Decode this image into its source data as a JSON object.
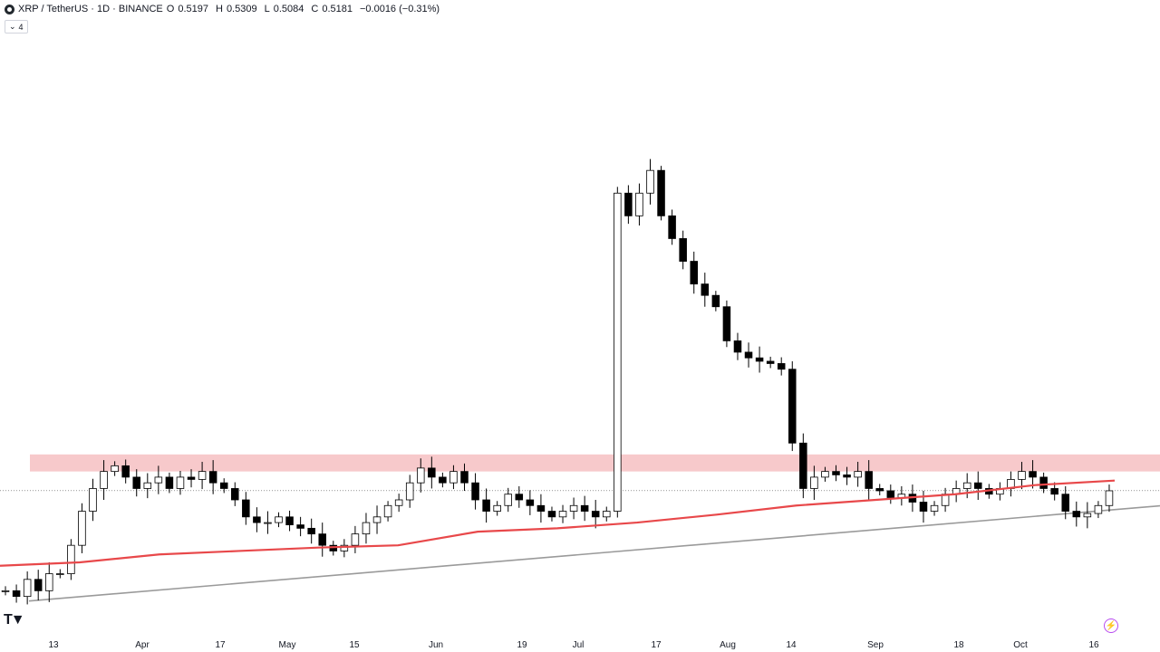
{
  "header": {
    "symbol": "XRP / TetherUS · 1D · BINANCE",
    "o_label": "O",
    "o_value": "0.5197",
    "h_label": "H",
    "h_value": "0.5309",
    "l_label": "L",
    "l_value": "0.5084",
    "c_label": "C",
    "c_value": "0.5181",
    "change": "−0.0016 (−0.31%)"
  },
  "indicator_toggle": {
    "icon": "chevron-down-icon",
    "count": "4"
  },
  "colors": {
    "ma": "#e8484a",
    "zone": "#f7c9cb",
    "trendline": "#9a9a9a",
    "candle_up": "#ffffff",
    "candle_down": "#000000",
    "wick": "#000000",
    "last_price_line": "#555555"
  },
  "chart_data": {
    "type": "candlestick",
    "symbol": "XRP / TetherUS",
    "interval": "1D",
    "exchange": "BINANCE",
    "x_ticks": [
      "13",
      "Apr",
      "17",
      "May",
      "15",
      "Jun",
      "19",
      "Jul",
      "17",
      "Aug",
      "14",
      "Sep",
      "18",
      "Oct",
      "16"
    ],
    "ylim": [
      0.4,
      0.95
    ],
    "last_close": 0.5181,
    "resistance_zone": [
      0.535,
      0.55
    ],
    "trendline": {
      "start": [
        "13",
        0.421
      ],
      "end": [
        "16",
        0.5
      ]
    },
    "moving_average": [
      0.452,
      0.455,
      0.462,
      0.465,
      0.468,
      0.47,
      0.482,
      0.485,
      0.49,
      0.497,
      0.505,
      0.51,
      0.515,
      0.523,
      0.527
    ],
    "price_path": [
      [
        0.43,
        0.425,
        0.44,
        0.43,
        0.445,
        0.445,
        0.47,
        0.5,
        0.52,
        0.535,
        0.54,
        0.53
      ],
      [
        0.52,
        0.525,
        0.53,
        0.52,
        0.53,
        0.528,
        0.535,
        0.525,
        0.52,
        0.51,
        0.495,
        0.49
      ],
      [
        0.49,
        0.495,
        0.488,
        0.485,
        0.48,
        0.47,
        0.465,
        0.47,
        0.48,
        0.49,
        0.495,
        0.505
      ],
      [
        0.51,
        0.525,
        0.538,
        0.53,
        0.525,
        0.535,
        0.525,
        0.51,
        0.5,
        0.505,
        0.515,
        0.51
      ],
      [
        0.505,
        0.5,
        0.495,
        0.5,
        0.505,
        0.5,
        0.495,
        0.5,
        0.78,
        0.76,
        0.78,
        0.8
      ],
      [
        0.76,
        0.74,
        0.72,
        0.7,
        0.69,
        0.68,
        0.65,
        0.64,
        0.635,
        0.632,
        0.63,
        0.625
      ],
      [
        0.56,
        0.52,
        0.53,
        0.535,
        0.532,
        0.53,
        0.535,
        0.52,
        0.518,
        0.512,
        0.515,
        0.508
      ],
      [
        0.5,
        0.505,
        0.515,
        0.52,
        0.525,
        0.52,
        0.515,
        0.52,
        0.528,
        0.535,
        0.53,
        0.52
      ],
      [
        0.515,
        0.5,
        0.495,
        0.498,
        0.505,
        0.518
      ]
    ]
  }
}
